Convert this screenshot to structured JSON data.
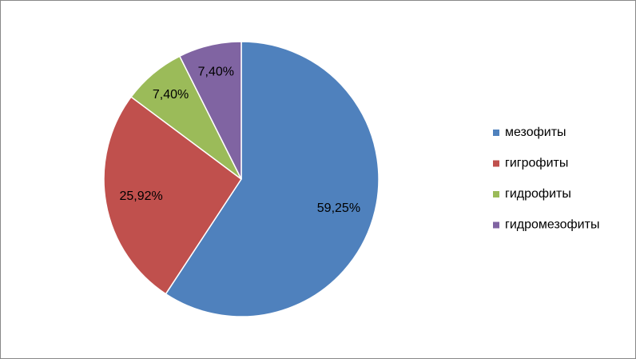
{
  "chart_data": {
    "type": "pie",
    "categories": [
      "мезофиты",
      "гигрофиты",
      "гидрофиты",
      "гидромезофиты"
    ],
    "values": [
      59.25,
      25.92,
      7.4,
      7.4
    ],
    "value_labels": [
      "59,25%",
      "25,92%",
      "7,40%",
      "7,40%"
    ],
    "colors": [
      "#4f81bd",
      "#c0504d",
      "#9bbb59",
      "#8064a2"
    ],
    "legend": "right"
  }
}
